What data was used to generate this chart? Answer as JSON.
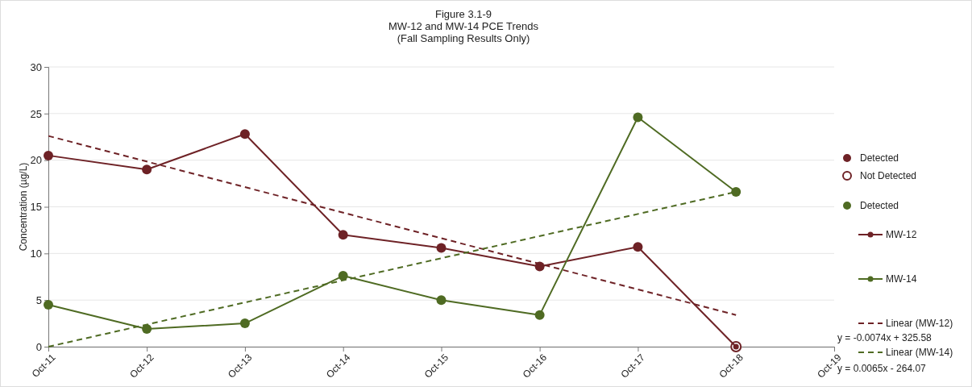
{
  "chart_data": {
    "type": "line",
    "title": "Figure 3.1-9\nMW-12 and MW-14 PCE Trends\n(Fall Sampling Results Only)",
    "ylabel": "Concentration (µg/L)",
    "x": [
      "2011-10",
      "2012-10",
      "2013-10",
      "2014-10",
      "2015-10",
      "2016-10",
      "2017-10",
      "2018-10"
    ],
    "xlim": [
      "2011-10",
      "2019-10"
    ],
    "xticks": [
      {
        "value": "2011-10",
        "label": "Oct-11"
      },
      {
        "value": "2012-10",
        "label": "Oct-12"
      },
      {
        "value": "2013-10",
        "label": "Oct-13"
      },
      {
        "value": "2014-10",
        "label": "Oct-14"
      },
      {
        "value": "2015-10",
        "label": "Oct-15"
      },
      {
        "value": "2016-10",
        "label": "Oct-16"
      },
      {
        "value": "2017-10",
        "label": "Oct-17"
      },
      {
        "value": "2018-10",
        "label": "Oct-18"
      },
      {
        "value": "2019-10",
        "label": "Oct-19"
      }
    ],
    "ylim": [
      0,
      30
    ],
    "yticks": [
      0,
      5,
      10,
      15,
      20,
      25,
      30
    ],
    "grid": "y",
    "legend": "right",
    "marker": "circle",
    "series": [
      {
        "name": "Detected",
        "type": "scatter",
        "color": "#6e2226",
        "values": [
          20.5,
          19.0,
          22.8,
          12.0,
          10.6,
          8.6,
          10.7,
          null
        ]
      },
      {
        "name": "Not Detected",
        "type": "scatter",
        "marker": "circle-open",
        "color": "#6e2226",
        "values": [
          null,
          null,
          null,
          null,
          null,
          null,
          null,
          0
        ]
      },
      {
        "name": "Detected",
        "type": "scatter",
        "color": "#4f6b23",
        "values": [
          4.5,
          1.9,
          2.5,
          7.6,
          5.0,
          3.4,
          24.6,
          16.6
        ]
      },
      {
        "name": "MW-12",
        "color": "#6e2226",
        "values": [
          20.5,
          19.0,
          22.8,
          12.0,
          10.6,
          8.6,
          10.7,
          0
        ]
      },
      {
        "name": "MW-14",
        "color": "#4f6b23",
        "values": [
          4.5,
          1.9,
          2.5,
          7.6,
          5.0,
          3.4,
          24.6,
          16.6
        ]
      },
      {
        "name": "Linear (MW-12)",
        "marker": "none",
        "line_style": "dashed",
        "color": "#6e2226",
        "x": [
          "2011-10",
          "2018-10"
        ],
        "values": [
          22.6,
          3.4
        ]
      },
      {
        "name": "Linear (MW-14)",
        "marker": "none",
        "line_style": "dashed",
        "color": "#4f6b23",
        "x": [
          "2011-10",
          "2018-10"
        ],
        "values": [
          0,
          16.6
        ]
      }
    ],
    "annotations": [
      "y = -0.0074x + 325.58",
      "y = 0.0065x - 264.07"
    ]
  }
}
